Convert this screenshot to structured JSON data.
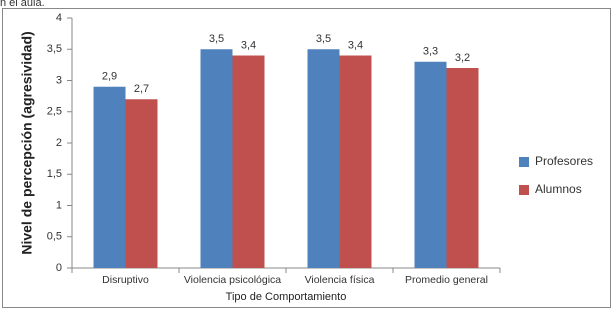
{
  "page_text": "n el aula.",
  "chart_data": {
    "type": "bar",
    "y_label": "Nivel de percepción (agresividad)",
    "x_label": "Tipo de Comportamiento",
    "categories": [
      "Disruptivo",
      "Violencia psicológica",
      "Violencia física",
      "Promedio general"
    ],
    "series": [
      {
        "name": "Profesores",
        "color": "#4f81bd",
        "values": [
          2.9,
          3.5,
          3.5,
          3.3
        ],
        "value_labels": [
          "2,9",
          "3,5",
          "3,5",
          "3,3"
        ]
      },
      {
        "name": "Alumnos",
        "color": "#c0504d",
        "values": [
          2.7,
          3.4,
          3.4,
          3.2
        ],
        "value_labels": [
          "2,7",
          "3,4",
          "3,4",
          "3,2"
        ]
      }
    ],
    "ylim": [
      0,
      4
    ],
    "yticks": [
      0,
      {
        "value": 0.5,
        "label": "0,5"
      },
      1,
      {
        "value": 1.5,
        "label": "1,5"
      },
      2,
      {
        "value": 2.5,
        "label": "2,5"
      },
      3,
      {
        "value": 3.5,
        "label": "3,5"
      },
      4
    ],
    "grid": false,
    "legend": "right"
  }
}
